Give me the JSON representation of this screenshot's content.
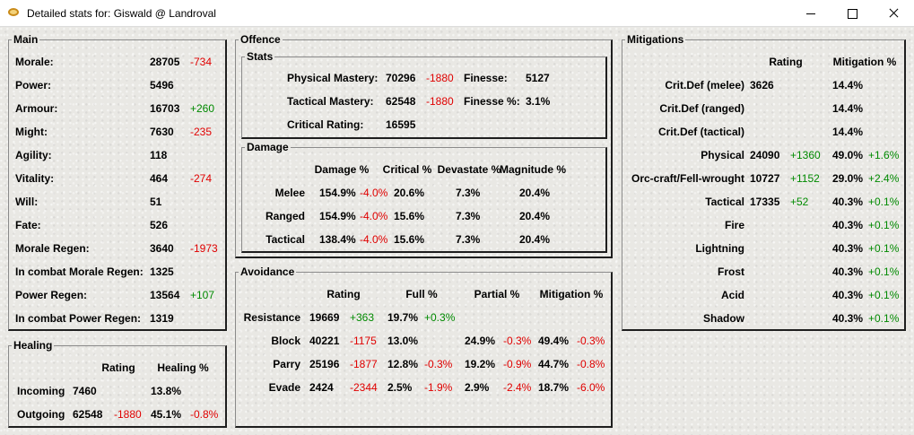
{
  "window": {
    "title": "Detailed stats for: Giswald @ Landroval"
  },
  "main": {
    "title": "Main",
    "rows": [
      {
        "label": "Morale:",
        "value": "28705",
        "delta": "-734",
        "delta_type": "neg"
      },
      {
        "label": "Power:",
        "value": "5496",
        "delta": "",
        "delta_type": ""
      },
      {
        "label": "Armour:",
        "value": "16703",
        "delta": "+260",
        "delta_type": "pos"
      },
      {
        "label": "Might:",
        "value": "7630",
        "delta": "-235",
        "delta_type": "neg"
      },
      {
        "label": "Agility:",
        "value": "118",
        "delta": "",
        "delta_type": ""
      },
      {
        "label": "Vitality:",
        "value": "464",
        "delta": "-274",
        "delta_type": "neg"
      },
      {
        "label": "Will:",
        "value": "51",
        "delta": "",
        "delta_type": ""
      },
      {
        "label": "Fate:",
        "value": "526",
        "delta": "",
        "delta_type": ""
      },
      {
        "label": "Morale Regen:",
        "value": "3640",
        "delta": "-1973",
        "delta_type": "neg"
      },
      {
        "label": "In combat Morale Regen:",
        "value": "1325",
        "delta": "",
        "delta_type": ""
      },
      {
        "label": "Power Regen:",
        "value": "13564",
        "delta": "+107",
        "delta_type": "pos"
      },
      {
        "label": "In combat Power Regen:",
        "value": "1319",
        "delta": "",
        "delta_type": ""
      }
    ]
  },
  "healing": {
    "title": "Healing",
    "headers": [
      "Rating",
      "Healing %"
    ],
    "rows": [
      {
        "label": "Incoming",
        "rating": "7460",
        "rating_delta": "",
        "pct": "13.8%",
        "pct_delta": ""
      },
      {
        "label": "Outgoing",
        "rating": "62548",
        "rating_delta": "-1880",
        "pct": "45.1%",
        "pct_delta": "-0.8%"
      }
    ]
  },
  "offence": {
    "title": "Offence",
    "stats": {
      "title": "Stats",
      "rows": [
        {
          "label": "Physical Mastery:",
          "value": "70296",
          "delta": "-1880",
          "label2": "Finesse:",
          "value2": "5127"
        },
        {
          "label": "Tactical Mastery:",
          "value": "62548",
          "delta": "-1880",
          "label2": "Finesse %:",
          "value2": "3.1%"
        },
        {
          "label": "Critical Rating:",
          "value": "16595",
          "delta": "",
          "label2": "",
          "value2": ""
        }
      ]
    },
    "damage": {
      "title": "Damage",
      "headers": [
        "Damage %",
        "Critical %",
        "Devastate %",
        "Magnitude %"
      ],
      "rows": [
        {
          "label": "Melee",
          "damage": "154.9%",
          "damage_delta": "-4.0%",
          "critical": "20.6%",
          "devastate": "7.3%",
          "magnitude": "20.4%"
        },
        {
          "label": "Ranged",
          "damage": "154.9%",
          "damage_delta": "-4.0%",
          "critical": "15.6%",
          "devastate": "7.3%",
          "magnitude": "20.4%"
        },
        {
          "label": "Tactical",
          "damage": "138.4%",
          "damage_delta": "-4.0%",
          "critical": "15.6%",
          "devastate": "7.3%",
          "magnitude": "20.4%"
        }
      ]
    }
  },
  "avoidance": {
    "title": "Avoidance",
    "headers": [
      "Rating",
      "Full %",
      "Partial %",
      "Mitigation %"
    ],
    "rows": [
      {
        "label": "Resistance",
        "rating": "19669",
        "rating_delta": "+363",
        "rating_delta_type": "pos",
        "full": "19.7%",
        "full_delta": "+0.3%",
        "full_delta_type": "pos",
        "partial": "",
        "partial_delta": "",
        "mit": "",
        "mit_delta": ""
      },
      {
        "label": "Block",
        "rating": "40221",
        "rating_delta": "-1175",
        "rating_delta_type": "neg",
        "full": "13.0%",
        "full_delta": "",
        "full_delta_type": "",
        "partial": "24.9%",
        "partial_delta": "-0.3%",
        "mit": "49.4%",
        "mit_delta": "-0.3%"
      },
      {
        "label": "Parry",
        "rating": "25196",
        "rating_delta": "-1877",
        "rating_delta_type": "neg",
        "full": "12.8%",
        "full_delta": "-0.3%",
        "full_delta_type": "neg",
        "partial": "19.2%",
        "partial_delta": "-0.9%",
        "mit": "44.7%",
        "mit_delta": "-0.8%"
      },
      {
        "label": "Evade",
        "rating": "2424",
        "rating_delta": "-2344",
        "rating_delta_type": "neg",
        "full": "2.5%",
        "full_delta": "-1.9%",
        "full_delta_type": "neg",
        "partial": "2.9%",
        "partial_delta": "-2.4%",
        "mit": "18.7%",
        "mit_delta": "-6.0%"
      }
    ]
  },
  "mitigations": {
    "title": "Mitigations",
    "headers": [
      "Rating",
      "Mitigation %"
    ],
    "rows": [
      {
        "label": "Crit.Def (melee)",
        "rating": "3626",
        "rating_delta": "",
        "pct": "14.4%",
        "pct_delta": ""
      },
      {
        "label": "Crit.Def (ranged)",
        "rating": "",
        "rating_delta": "",
        "pct": "14.4%",
        "pct_delta": ""
      },
      {
        "label": "Crit.Def (tactical)",
        "rating": "",
        "rating_delta": "",
        "pct": "14.4%",
        "pct_delta": ""
      },
      {
        "label": "Physical",
        "rating": "24090",
        "rating_delta": "+1360",
        "pct": "49.0%",
        "pct_delta": "+1.6%"
      },
      {
        "label": "Orc-craft/Fell-wrought",
        "rating": "10727",
        "rating_delta": "+1152",
        "pct": "29.0%",
        "pct_delta": "+2.4%"
      },
      {
        "label": "Tactical",
        "rating": "17335",
        "rating_delta": "+52",
        "pct": "40.3%",
        "pct_delta": "+0.1%"
      },
      {
        "label": "Fire",
        "rating": "",
        "rating_delta": "",
        "pct": "40.3%",
        "pct_delta": "+0.1%"
      },
      {
        "label": "Lightning",
        "rating": "",
        "rating_delta": "",
        "pct": "40.3%",
        "pct_delta": "+0.1%"
      },
      {
        "label": "Frost",
        "rating": "",
        "rating_delta": "",
        "pct": "40.3%",
        "pct_delta": "+0.1%"
      },
      {
        "label": "Acid",
        "rating": "",
        "rating_delta": "",
        "pct": "40.3%",
        "pct_delta": "+0.1%"
      },
      {
        "label": "Shadow",
        "rating": "",
        "rating_delta": "",
        "pct": "40.3%",
        "pct_delta": "+0.1%"
      }
    ]
  }
}
